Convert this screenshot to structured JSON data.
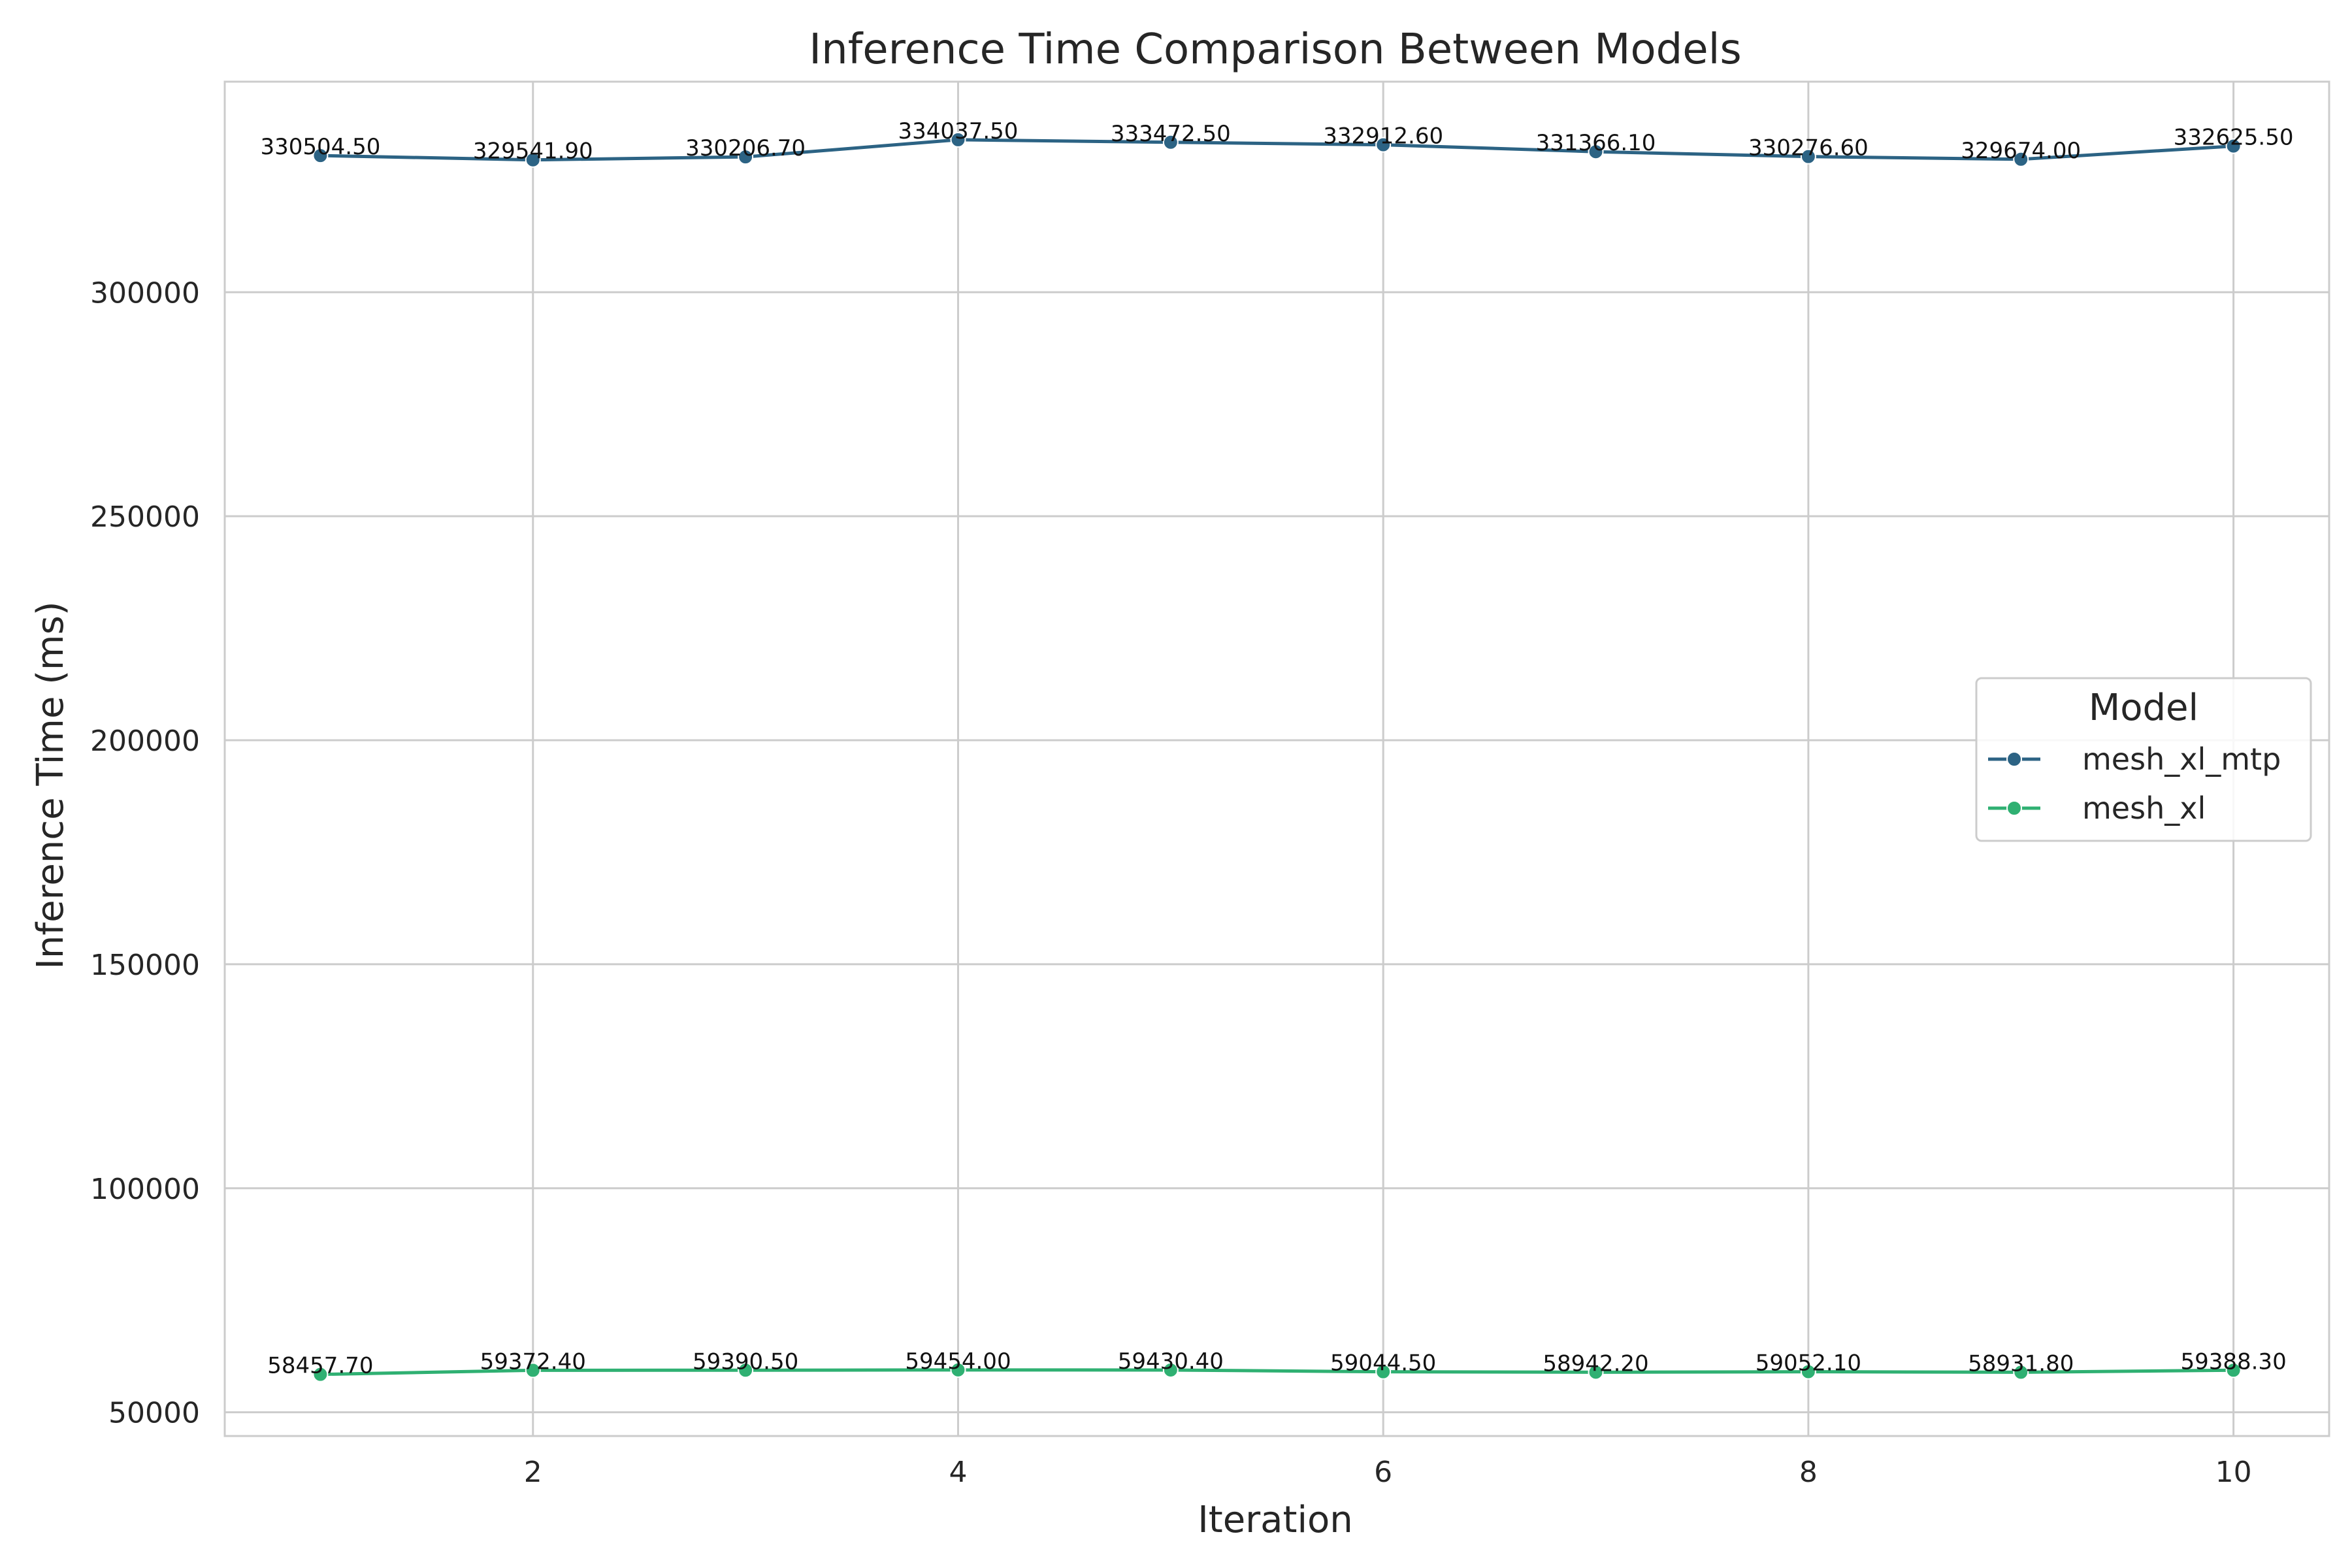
{
  "chart_data": {
    "type": "line",
    "title": "Inference Time Comparison Between Models",
    "xlabel": "Iteration",
    "ylabel": "Inference Time (ms)",
    "x": [
      1,
      2,
      3,
      4,
      5,
      6,
      7,
      8,
      9,
      10
    ],
    "xlim": [
      0.55,
      10.45
    ],
    "ylim": [
      44700,
      347000
    ],
    "x_ticks": [
      "2",
      "4",
      "6",
      "8",
      "10"
    ],
    "x_tick_values": [
      2,
      4,
      6,
      8,
      10
    ],
    "y_ticks": [
      "50000",
      "100000",
      "150000",
      "200000",
      "250000",
      "300000"
    ],
    "y_tick_values": [
      50000,
      100000,
      150000,
      200000,
      250000,
      300000
    ],
    "grid": true,
    "legend": {
      "title": "Model",
      "placement": "center-right"
    },
    "series": [
      {
        "name": "mesh_xl_mtp",
        "color": "#2c6384",
        "values": [
          330504.5,
          329541.9,
          330206.7,
          334037.5,
          333472.5,
          332912.6,
          331366.1,
          330276.6,
          329674.0,
          332625.5
        ],
        "labels": [
          "330504.50",
          "329541.90",
          "330206.70",
          "334037.50",
          "333472.50",
          "332912.60",
          "331366.10",
          "330276.60",
          "329674.00",
          "332625.50"
        ]
      },
      {
        "name": "mesh_xl",
        "color": "#2fb072",
        "values": [
          58457.7,
          59372.4,
          59390.5,
          59454.0,
          59430.4,
          59044.5,
          58942.2,
          59052.1,
          58931.8,
          59388.3
        ],
        "labels": [
          "58457.70",
          "59372.40",
          "59390.50",
          "59454.00",
          "59430.40",
          "59044.50",
          "58942.20",
          "59052.10",
          "58931.80",
          "59388.30"
        ]
      }
    ]
  }
}
